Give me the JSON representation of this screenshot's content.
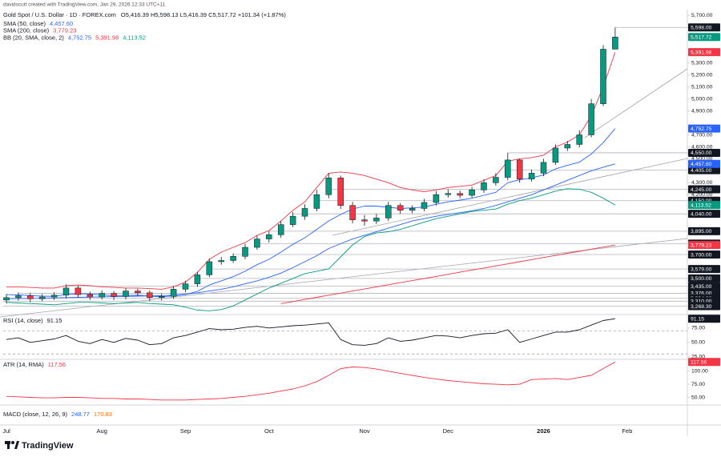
{
  "attribution": "davidscutt created with TradingView.com, Jan 29, 2026 12:33 UTC+11",
  "logo_text": "TradingView",
  "chart_data": [
    {
      "type": "candlestick",
      "title": "Gold Spot / U.S. Dollar · 1D · FOREX.com",
      "ohlc_label": "O5,416.39 H5,598.13 L5,416.39 C5,517.72 +101.34 (+1.87%)",
      "categories": [
        "Jul",
        null,
        null,
        null,
        null,
        null,
        null,
        null,
        "Aug",
        null,
        null,
        null,
        null,
        null,
        null,
        "Sep",
        null,
        null,
        null,
        null,
        null,
        null,
        "Oct",
        null,
        null,
        null,
        null,
        null,
        null,
        null,
        "Nov",
        null,
        null,
        null,
        null,
        null,
        null,
        "Dec",
        null,
        null,
        null,
        null,
        null,
        null,
        null,
        "2026",
        null,
        null,
        null,
        null,
        null,
        null,
        "Feb"
      ],
      "open": [
        3320,
        3340,
        3355,
        3330,
        3345,
        3360,
        3420,
        3365,
        3345,
        3375,
        3350,
        3395,
        3380,
        3340,
        3350,
        3410,
        3455,
        3530,
        3640,
        3650,
        3685,
        3760,
        3830,
        3865,
        3950,
        4020,
        4085,
        4200,
        4340,
        4110,
        3990,
        3980,
        4005,
        4110,
        4070,
        4085,
        4135,
        4200,
        4210,
        4195,
        4240,
        4300,
        4345,
        4490,
        4330,
        4380,
        4470,
        4590,
        4620,
        4700,
        4960,
        5416.39,
        null
      ],
      "high": [
        3370,
        3385,
        3380,
        3370,
        3385,
        3450,
        3440,
        3390,
        3400,
        3395,
        3420,
        3415,
        3400,
        3375,
        3435,
        3480,
        3555,
        3665,
        3680,
        3710,
        3790,
        3860,
        3895,
        3980,
        4055,
        4120,
        4240,
        4380,
        4360,
        4140,
        4030,
        4040,
        4140,
        4130,
        4110,
        4165,
        4230,
        4245,
        4235,
        4265,
        4330,
        4380,
        4550,
        4500,
        4410,
        4500,
        4620,
        4650,
        4740,
        5000,
        5450,
        5598.13,
        null
      ],
      "low": [
        3290,
        3315,
        3300,
        3310,
        3320,
        3335,
        3340,
        3320,
        3325,
        3320,
        3325,
        3355,
        3310,
        3315,
        3330,
        3385,
        3430,
        3510,
        3615,
        3630,
        3660,
        3740,
        3800,
        3840,
        3930,
        3990,
        4060,
        4170,
        4080,
        3960,
        3940,
        3955,
        3980,
        4040,
        4045,
        4060,
        4110,
        4175,
        4170,
        4175,
        4215,
        4275,
        4320,
        4300,
        4310,
        4355,
        4450,
        4565,
        4595,
        4680,
        4940,
        5416.39,
        null
      ],
      "close": [
        3340,
        3355,
        3330,
        3345,
        3360,
        3420,
        3365,
        3345,
        3375,
        3350,
        3395,
        3380,
        3340,
        3350,
        3410,
        3455,
        3530,
        3640,
        3650,
        3685,
        3760,
        3830,
        3865,
        3950,
        4020,
        4085,
        4200,
        4340,
        4110,
        3990,
        3980,
        4005,
        4110,
        4070,
        4085,
        4135,
        4200,
        4210,
        4195,
        4240,
        4300,
        4345,
        4490,
        4330,
        4380,
        4470,
        4590,
        4620,
        4700,
        4960,
        5416,
        5517.72,
        null
      ],
      "last_label": "5,517.72",
      "up_color": "#089981",
      "down_color": "#f23645",
      "ylim": [
        3205,
        5747
      ],
      "yticks": [
        {
          "value": 5700,
          "label": "5,700.00"
        },
        {
          "value": 5300,
          "label": "5,300.00"
        },
        {
          "value": 5200,
          "label": "5,200.00"
        },
        {
          "value": 5100,
          "label": "5,100.00"
        },
        {
          "value": 5000,
          "label": "5,000.00"
        },
        {
          "value": 4900,
          "label": "4,900.00"
        },
        {
          "value": 4700,
          "label": "4,700.00"
        },
        {
          "value": 4600,
          "label": "4,600.00"
        },
        {
          "value": 4500,
          "label": "4,500.00"
        },
        {
          "value": 4300,
          "label": "4,300.00"
        },
        {
          "value": 4200,
          "label": "4,200.00"
        },
        {
          "value": 4100,
          "label": "4,100.00"
        }
      ],
      "grid": false,
      "levels": [
        {
          "value": 5598,
          "label": "5,598.00"
        },
        {
          "value": 4550,
          "label": "4,550.00"
        },
        {
          "value": 4405,
          "label": "4,405.00"
        },
        {
          "value": 4245,
          "label": "4,245.00"
        },
        {
          "value": 4150,
          "label": "4,150.00"
        },
        {
          "value": 4040,
          "label": "4,040.00"
        },
        {
          "value": 3895,
          "label": "3,895.00"
        },
        {
          "value": 3791,
          "label": "3,791.00"
        },
        {
          "value": 3700,
          "label": "3,700.00"
        },
        {
          "value": 3579,
          "label": "3,579.00"
        },
        {
          "value": 3500,
          "label": "3,500.00"
        },
        {
          "value": 3435,
          "label": "3,435.00"
        },
        {
          "value": 3376,
          "label": "3,376.00"
        },
        {
          "value": 3334,
          "label": "3,334.00"
        },
        {
          "value": 3310,
          "label": "3,310.00"
        },
        {
          "value": 3268.3,
          "label": "3,268.30"
        }
      ],
      "level_color": "#b2b5be",
      "indicators": [
        {
          "name": "SMA (50, close)",
          "lines": [
            {
              "color": "#2962ff",
              "last_label": "4,457.60",
              "values": [
                3330,
                3332,
                3333,
                3335,
                3337,
                3340,
                3342,
                3344,
                3346,
                3348,
                3350,
                3352,
                3354,
                3356,
                3360,
                3368,
                3380,
                3395,
                3410,
                3430,
                3455,
                3480,
                3510,
                3545,
                3590,
                3640,
                3690,
                3750,
                3790,
                3830,
                3860,
                3890,
                3920,
                3950,
                3980,
                4000,
                4020,
                4035,
                4050,
                4065,
                4085,
                4110,
                4140,
                4170,
                4200,
                4240,
                4280,
                4320,
                4360,
                4400,
                4430,
                4457.6,
                null
              ]
            }
          ]
        },
        {
          "name": "SMA (200, close)",
          "lines": [
            {
              "color": "#f23645",
              "last_label": "3,779.23",
              "values": [
                null,
                null,
                null,
                null,
                null,
                null,
                null,
                null,
                null,
                null,
                null,
                null,
                null,
                null,
                null,
                null,
                null,
                null,
                null,
                null,
                null,
                null,
                null,
                3290,
                3307,
                3325,
                3342,
                3360,
                3377,
                3395,
                3412,
                3430,
                3447,
                3465,
                3482,
                3500,
                3517,
                3535,
                3552,
                3570,
                3587,
                3605,
                3622,
                3640,
                3657,
                3675,
                3692,
                3710,
                3727,
                3745,
                3762,
                3779.23,
                null
              ]
            }
          ]
        },
        {
          "name": "BB (20, SMA, close, 2)",
          "lines": [
            {
              "color": "#2962ff",
              "last_label": "4,752.75",
              "values": [
                3365,
                3362,
                3357,
                3352,
                3350,
                3365,
                3372,
                3370,
                3362,
                3357,
                3357,
                3360,
                3352,
                3347,
                3355,
                3365,
                3392,
                3445,
                3480,
                3515,
                3560,
                3615,
                3660,
                3720,
                3785,
                3840,
                3910,
                3980,
                4035,
                4080,
                4105,
                4105,
                4095,
                4085,
                4090,
                4097,
                4120,
                4140,
                4155,
                4170,
                4195,
                4220,
                4300,
                4325,
                4340,
                4365,
                4415,
                4445,
                4472,
                4540,
                4635,
                4752.75,
                null
              ]
            },
            {
              "color": "#f23645",
              "last_label": "5,391.98",
              "values": [
                3430,
                3430,
                3425,
                3420,
                3420,
                3440,
                3445,
                3440,
                3430,
                3425,
                3420,
                3420,
                3415,
                3410,
                3430,
                3470,
                3550,
                3660,
                3720,
                3760,
                3800,
                3860,
                3900,
                3980,
                4070,
                4140,
                4260,
                4380,
                4390,
                4380,
                4360,
                4330,
                4300,
                4260,
                4240,
                4225,
                4240,
                4260,
                4270,
                4280,
                4320,
                4360,
                4480,
                4500,
                4510,
                4530,
                4600,
                4640,
                4700,
                4860,
                5100,
                5391.98,
                null
              ]
            },
            {
              "color": "#089981",
              "last_label": "4,113.52",
              "values": [
                3300,
                3295,
                3290,
                3285,
                3280,
                3290,
                3300,
                3300,
                3295,
                3290,
                3295,
                3300,
                3290,
                3285,
                3280,
                3260,
                3235,
                3230,
                3240,
                3270,
                3320,
                3370,
                3420,
                3460,
                3500,
                3540,
                3560,
                3580,
                3680,
                3780,
                3850,
                3880,
                3890,
                3910,
                3940,
                3970,
                4000,
                4020,
                4040,
                4060,
                4070,
                4080,
                4120,
                4150,
                4170,
                4200,
                4230,
                4250,
                4245,
                4220,
                4170,
                4113.52,
                null
              ]
            }
          ]
        }
      ]
    },
    {
      "type": "line",
      "title": "RSI (14, close)",
      "series": [
        {
          "color": "#131722",
          "last_label": "91.15",
          "values": [
            55,
            58,
            50,
            53,
            56,
            62,
            52,
            48,
            55,
            50,
            57,
            54,
            46,
            48,
            58,
            62,
            68,
            74,
            72,
            73,
            76,
            78,
            75,
            77,
            79,
            80,
            82,
            84,
            55,
            46,
            45,
            48,
            58,
            52,
            54,
            58,
            62,
            61,
            58,
            62,
            65,
            66,
            72,
            50,
            56,
            62,
            68,
            68,
            72,
            80,
            88,
            91.15,
            null
          ]
        }
      ],
      "ylim": [
        22,
        97
      ],
      "yticks": [
        {
          "value": 75,
          "label": "75.00"
        },
        {
          "value": 50,
          "label": "50.00"
        },
        {
          "value": 25,
          "label": "25.00"
        }
      ],
      "bands": [
        70,
        30
      ]
    },
    {
      "type": "line",
      "title": "ATR (14, RMA)",
      "series": [
        {
          "color": "#f23645",
          "last_label": "117.56",
          "values": [
            52,
            51,
            50,
            49,
            49,
            50,
            50,
            49,
            48,
            48,
            47,
            47,
            46,
            45,
            45,
            45,
            46,
            47,
            48,
            50,
            52,
            55,
            58,
            62,
            66,
            72,
            80,
            92,
            105,
            108,
            107,
            104,
            100,
            96,
            92,
            88,
            85,
            82,
            80,
            78,
            76,
            75,
            74,
            75,
            84,
            85,
            86,
            84,
            88,
            92,
            105,
            117.56,
            null
          ]
        }
      ],
      "ylim": [
        37,
        121
      ],
      "yticks": [
        {
          "value": 100,
          "label": "100.00"
        },
        {
          "value": 75,
          "label": "75.00"
        },
        {
          "value": 50,
          "label": "50.00"
        }
      ]
    },
    {
      "type": "legend",
      "title": "MACD (close, 12, 26, 9)",
      "legend_values": [
        {
          "label": "248.77",
          "color": "#2962ff"
        },
        {
          "label": "170.83",
          "color": "#ff6d00"
        }
      ]
    }
  ]
}
